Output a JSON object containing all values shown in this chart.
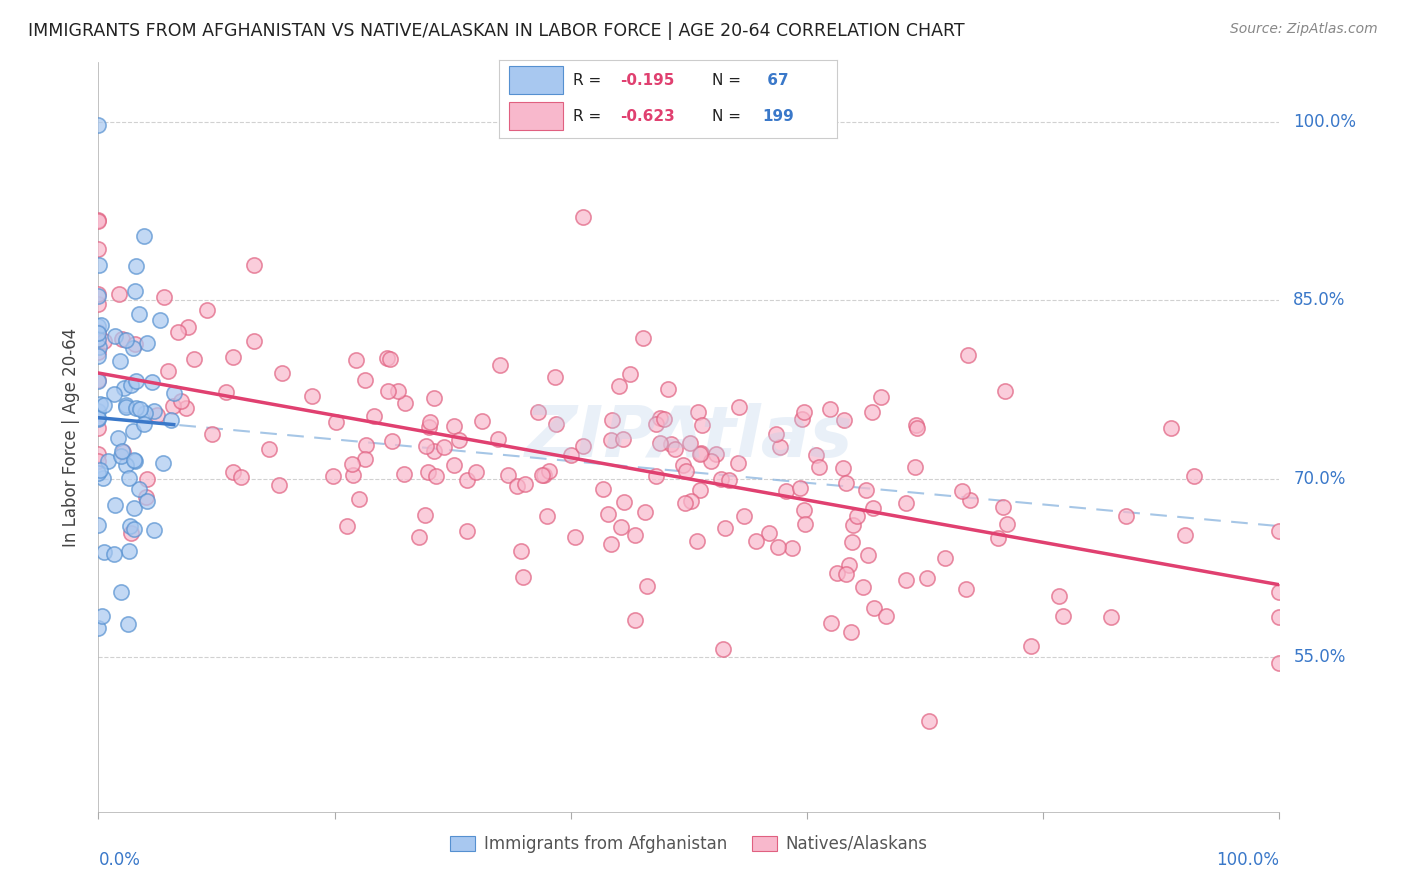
{
  "title": "IMMIGRANTS FROM AFGHANISTAN VS NATIVE/ALASKAN IN LABOR FORCE | AGE 20-64 CORRELATION CHART",
  "source": "Source: ZipAtlas.com",
  "ylabel": "In Labor Force | Age 20-64",
  "ytick_labels": [
    "100.0%",
    "85.0%",
    "70.0%",
    "55.0%"
  ],
  "ytick_values": [
    1.0,
    0.85,
    0.7,
    0.55
  ],
  "xlim": [
    0.0,
    1.0
  ],
  "ylim": [
    0.42,
    1.05
  ],
  "r_afghan": -0.195,
  "n_afghan": 67,
  "r_native": -0.623,
  "n_native": 199,
  "color_afghan_face": "#a8c8f0",
  "color_afghan_edge": "#5590d0",
  "color_native_face": "#f8b8cc",
  "color_native_edge": "#e06080",
  "color_trendline_afghan": "#3a78c9",
  "color_trendline_native": "#e04070",
  "color_dashed_afghan": "#90b8e0",
  "watermark": "ZIPAtlas",
  "background_color": "#ffffff",
  "grid_color": "#cccccc",
  "title_color": "#222222",
  "right_label_color": "#3a78c9",
  "bottom_label_color": "#3a78c9",
  "legend_r_color": "#e04070",
  "legend_n_color": "#3a78c9",
  "legend_text_color": "#222222"
}
